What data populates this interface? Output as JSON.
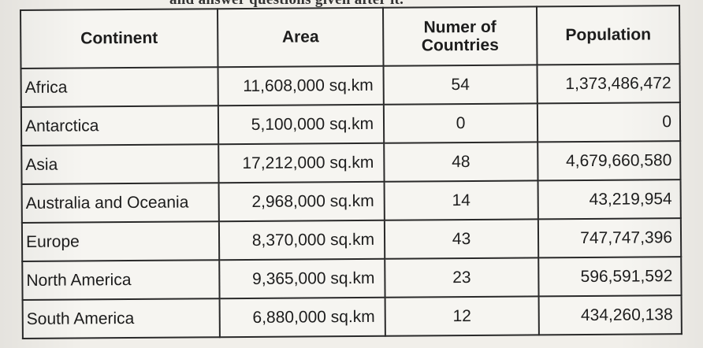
{
  "header_fragment": "and answer questions given after it.",
  "table": {
    "headers": [
      "Continent",
      "Area",
      "Numer of Countries",
      "Population"
    ],
    "rows": [
      {
        "continent": "Africa",
        "area": "11,608,000 sq.km",
        "countries": "54",
        "population": "1,373,486,472"
      },
      {
        "continent": "Antarctica",
        "area": "5,100,000 sq.km",
        "countries": "0",
        "population": "0"
      },
      {
        "continent": "Asia",
        "area": "17,212,000 sq.km",
        "countries": "48",
        "population": "4,679,660,580"
      },
      {
        "continent": "Australia and Oceania",
        "area": "2,968,000 sq.km",
        "countries": "14",
        "population": "43,219,954"
      },
      {
        "continent": "Europe",
        "area": "8,370,000 sq.km",
        "countries": "43",
        "population": "747,747,396"
      },
      {
        "continent": "North America",
        "area": "9,365,000 sq.km",
        "countries": "23",
        "population": "596,591,592"
      },
      {
        "continent": "South America",
        "area": "6,880,000 sq.km",
        "countries": "12",
        "population": "434,260,138"
      }
    ]
  }
}
